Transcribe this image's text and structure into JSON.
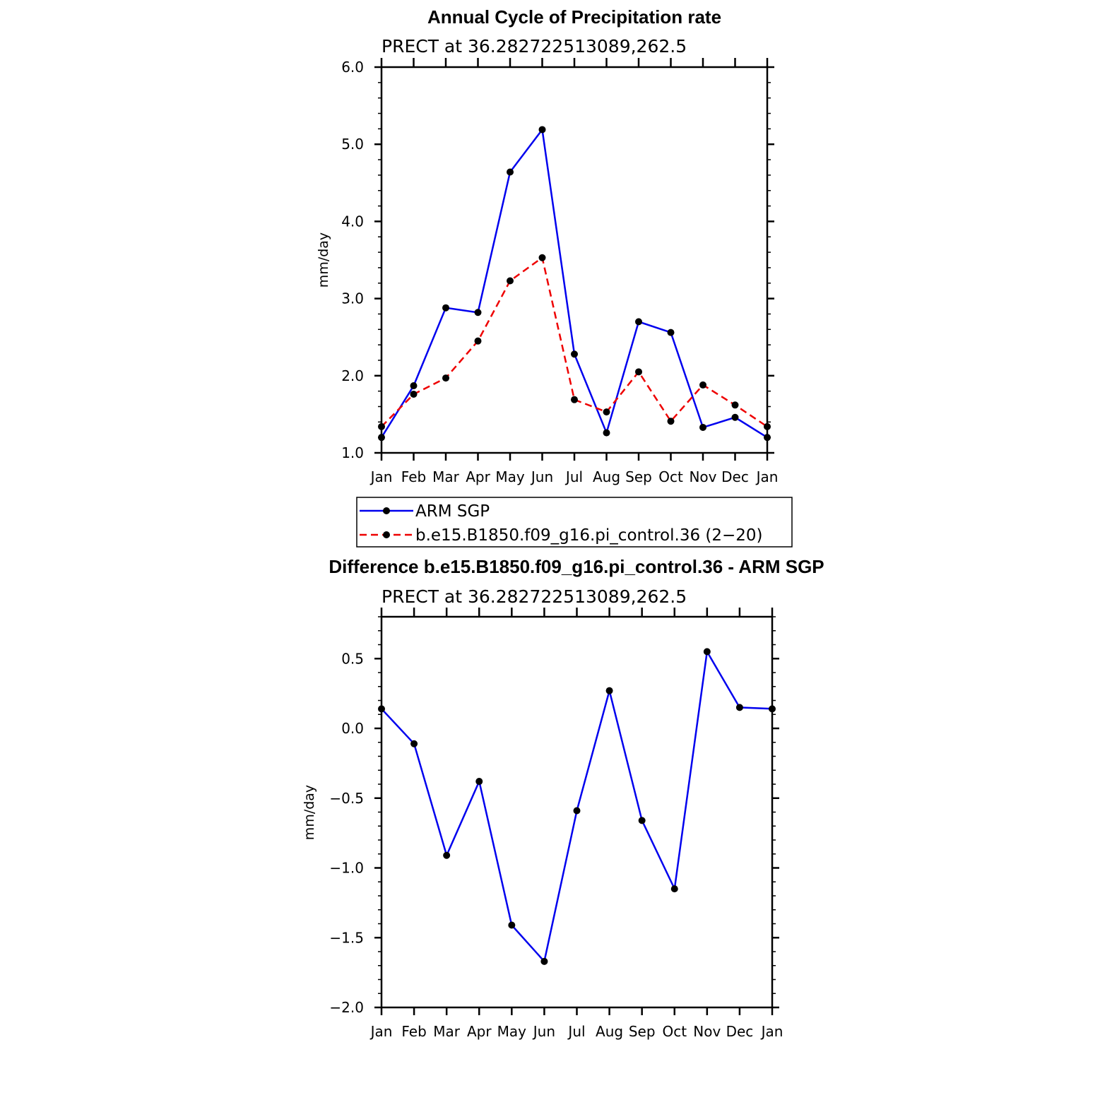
{
  "chart_data": [
    {
      "type": "line",
      "title": "Annual Cycle of Precipitation rate",
      "subtitle": "PRECT at 36.282722513089,262.5",
      "ylabel": "mm/day",
      "ylim": [
        1.0,
        6.0
      ],
      "yticks": [
        "1.0",
        "2.0",
        "3.0",
        "4.0",
        "5.0",
        "6.0"
      ],
      "categories": [
        "Jan",
        "Feb",
        "Mar",
        "Apr",
        "May",
        "Jun",
        "Jul",
        "Aug",
        "Sep",
        "Oct",
        "Nov",
        "Dec",
        "Jan"
      ],
      "series": [
        {
          "name": "ARM SGP",
          "color": "#0000ee",
          "dash": "solid",
          "values": [
            1.2,
            1.87,
            2.88,
            2.82,
            4.64,
            5.19,
            2.28,
            1.26,
            2.7,
            2.56,
            1.33,
            1.46,
            1.2
          ]
        },
        {
          "name": "b.e15.B1850.f09_g16.pi_control.36 (2−20)",
          "color": "#ee0000",
          "dash": "dashed",
          "values": [
            1.34,
            1.76,
            1.97,
            2.45,
            3.23,
            3.53,
            1.69,
            1.53,
            2.05,
            1.41,
            1.88,
            1.62,
            1.34
          ]
        }
      ],
      "legend": "below"
    },
    {
      "type": "line",
      "title": "Difference b.e15.B1850.f09_g16.pi_control.36 - ARM SGP",
      "subtitle": "PRECT at 36.282722513089,262.5",
      "ylabel": "mm/day",
      "ylim": [
        -2.0,
        0.8
      ],
      "yticks": [
        "−2.0",
        "−1.5",
        "−1.0",
        "−0.5",
        "0.0",
        "0.5"
      ],
      "categories": [
        "Jan",
        "Feb",
        "Mar",
        "Apr",
        "May",
        "Jun",
        "Jul",
        "Aug",
        "Sep",
        "Oct",
        "Nov",
        "Dec",
        "Jan"
      ],
      "series": [
        {
          "color": "#0000ee",
          "dash": "solid",
          "values": [
            0.14,
            -0.11,
            -0.91,
            -0.38,
            -1.41,
            -1.67,
            -0.59,
            0.27,
            -0.66,
            -1.15,
            0.55,
            0.15,
            0.14
          ]
        }
      ]
    }
  ]
}
